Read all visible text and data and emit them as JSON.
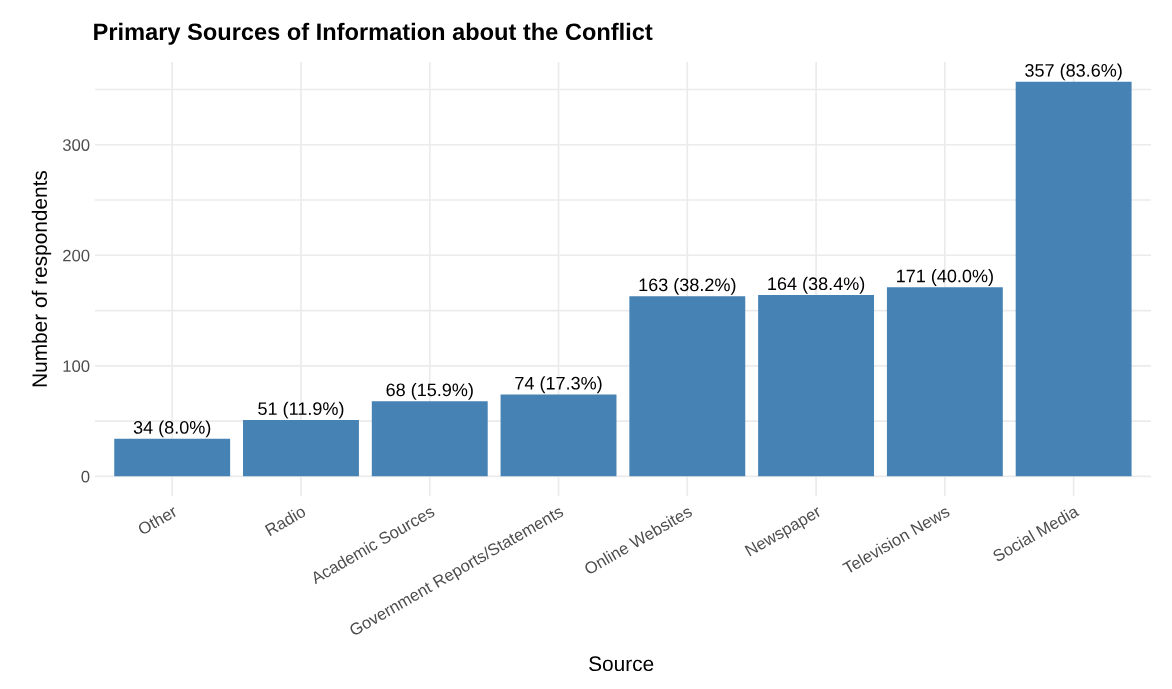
{
  "chart_data": {
    "type": "bar",
    "title": "Primary Sources of Information about the Conflict",
    "xlabel": "Source",
    "ylabel": "Number of respondents",
    "categories": [
      "Other",
      "Radio",
      "Academic Sources",
      "Government Reports/Statements",
      "Online Websites",
      "Newspaper",
      "Television News",
      "Social Media"
    ],
    "values": [
      34,
      51,
      68,
      74,
      163,
      164,
      171,
      357
    ],
    "color": "#4682b4",
    "value_labels": [
      "34 (8.0%)",
      "51 (11.9%)",
      "68 (15.9%)",
      "74 (17.3%)",
      "163 (38.2%)",
      "164 (38.4%)",
      "171 (40.0%)",
      "357 (83.6%)"
    ],
    "ylim": [
      -17.85,
      374.85
    ],
    "yticks": [
      0,
      {
        "value": 50,
        "label": null
      },
      100,
      {
        "value": 150,
        "label": null
      },
      200,
      {
        "value": 250,
        "label": null
      },
      300,
      {
        "value": 350,
        "label": null
      }
    ],
    "grid": true
  }
}
